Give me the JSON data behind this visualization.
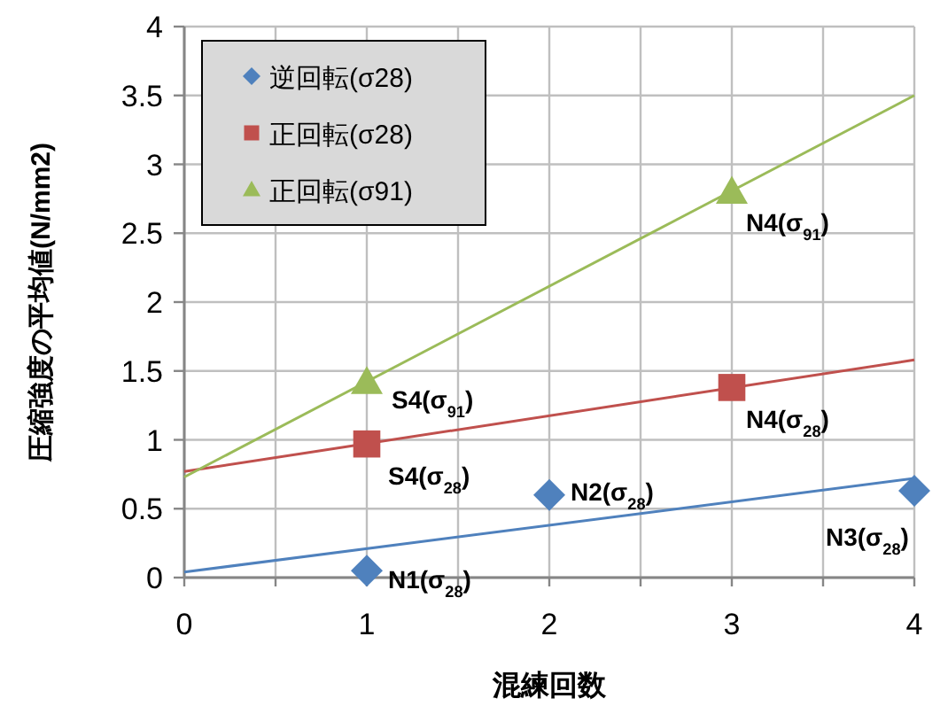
{
  "chart_data": {
    "type": "scatter",
    "xlabel": "混練回数",
    "ylabel": "圧縮強度の平均値(N/mm2)",
    "xlim": [
      0,
      4
    ],
    "ylim": [
      0,
      4
    ],
    "xticks": [
      0,
      {
        "value": 0.5,
        "label": null
      },
      1,
      {
        "value": 1.5,
        "label": null
      },
      2,
      {
        "value": 2.5,
        "label": null
      },
      3,
      {
        "value": 3.5,
        "label": null
      },
      4
    ],
    "yticks": [
      0,
      0.5,
      1,
      1.5,
      2,
      2.5,
      3,
      3.5,
      4
    ],
    "grid": true,
    "legend": "top left",
    "series": [
      {
        "name": "逆回転(σ28)",
        "color": "#4f81bd",
        "marker": "diamond",
        "x": [
          1,
          2,
          4
        ],
        "values": [
          0.05,
          0.6,
          0.63
        ]
      },
      {
        "name": "正回転(σ28)",
        "color": "#c0504d",
        "marker": "square",
        "x": [
          1,
          3
        ],
        "values": [
          0.97,
          1.38
        ]
      },
      {
        "name": "正回転(σ91)",
        "color": "#9bbb59",
        "marker": "triangle",
        "x": [
          1,
          3
        ],
        "values": [
          1.42,
          2.8
        ]
      },
      {
        "type": "line",
        "color": "#4f81bd",
        "marker": "none",
        "x": [
          0,
          4
        ],
        "values": [
          0.04,
          0.72
        ]
      },
      {
        "type": "line",
        "color": "#c0504d",
        "marker": "none",
        "x": [
          0,
          4
        ],
        "values": [
          0.77,
          1.58
        ]
      },
      {
        "type": "line",
        "color": "#9bbb59",
        "marker": "none",
        "x": [
          0,
          4
        ],
        "values": [
          0.73,
          3.5
        ]
      }
    ],
    "annotations": [
      {
        "text": "N1(σ$_{28}$)",
        "x": 1,
        "y": 0.05
      },
      {
        "text": "N2(σ$_{28}$)",
        "x": 2,
        "y": 0.6
      },
      {
        "text": "N3(σ$_{28}$)",
        "x": 4,
        "y": 0.63
      },
      {
        "text": "S4(σ$_{28}$)",
        "x": 1,
        "y": 0.97
      },
      {
        "text": "N4(σ$_{28}$)",
        "x": 3,
        "y": 1.38
      },
      {
        "text": "S4(σ$_{91}$)",
        "x": 1,
        "y": 1.42
      },
      {
        "text": "N4(σ$_{91}$)",
        "x": 3,
        "y": 2.8
      }
    ]
  }
}
